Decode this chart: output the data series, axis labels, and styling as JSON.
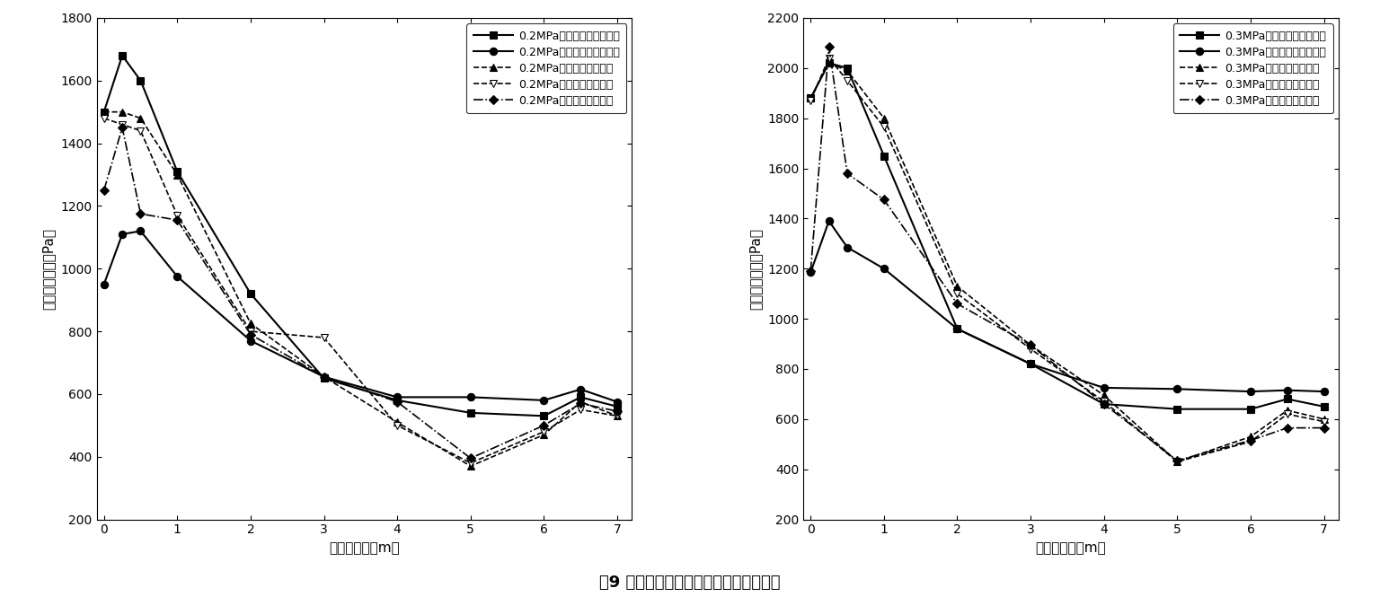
{
  "left": {
    "ylabel": "壁面峰值压力（Pa）",
    "xlabel": "距袋口距离（m）",
    "ylim": [
      200,
      1800
    ],
    "yticks": [
      200,
      400,
      600,
      800,
      1000,
      1200,
      1400,
      1600,
      1800
    ],
    "xlim": [
      -0.1,
      7.2
    ],
    "xticks": [
      0,
      1,
      2,
      3,
      4,
      5,
      6,
      7
    ],
    "series": [
      {
        "label": "0.2MPa数模（等流通面积）",
        "x": [
          0,
          0.25,
          0.5,
          1,
          2,
          3,
          4,
          5,
          6,
          6.5,
          7
        ],
        "y": [
          1500,
          1680,
          1600,
          1310,
          920,
          650,
          580,
          540,
          530,
          590,
          560
        ],
        "color": "black",
        "marker": "s",
        "linestyle": "-",
        "linewidth": 1.5,
        "markersize": 6,
        "markerfacecolor": "black"
      },
      {
        "label": "0.2MPa数模（等过滤面积）",
        "x": [
          0,
          0.25,
          0.5,
          1,
          2,
          3,
          4,
          5,
          6,
          6.5,
          7
        ],
        "y": [
          950,
          1110,
          1120,
          975,
          770,
          655,
          590,
          590,
          580,
          615,
          575
        ],
        "color": "black",
        "marker": "o",
        "linestyle": "-",
        "linewidth": 1.5,
        "markersize": 6,
        "markerfacecolor": "black"
      },
      {
        "label": "0.2MPa物理试验（波峰）",
        "x": [
          0,
          0.25,
          0.5,
          1,
          2,
          3,
          4,
          5,
          6,
          6.5,
          7
        ],
        "y": [
          1500,
          1500,
          1480,
          1300,
          825,
          655,
          510,
          370,
          470,
          575,
          530
        ],
        "color": "black",
        "marker": "^",
        "linestyle": "--",
        "linewidth": 1.2,
        "markersize": 6,
        "markerfacecolor": "black"
      },
      {
        "label": "0.2MPa物理试验（波中）",
        "x": [
          0,
          0.25,
          0.5,
          1,
          2,
          3,
          4,
          5,
          6,
          6.5,
          7
        ],
        "y": [
          1480,
          1460,
          1440,
          1170,
          800,
          780,
          500,
          380,
          480,
          550,
          530
        ],
        "color": "black",
        "marker": "v",
        "linestyle": "--",
        "linewidth": 1.2,
        "markersize": 6,
        "markerfacecolor": "white"
      },
      {
        "label": "0.2MPa物理试验（波谷）",
        "x": [
          0,
          0.25,
          0.5,
          1,
          2,
          3,
          4,
          5,
          6,
          6.5,
          7
        ],
        "y": [
          1250,
          1450,
          1175,
          1155,
          790,
          655,
          575,
          395,
          500,
          570,
          545
        ],
        "color": "black",
        "marker": "D",
        "linestyle": "-.",
        "linewidth": 1.2,
        "markersize": 5,
        "markerfacecolor": "black"
      }
    ]
  },
  "right": {
    "ylabel": "壁面峰值压力（Pa）",
    "xlabel": "距袋口距离（m）",
    "ylim": [
      200,
      2200
    ],
    "yticks": [
      200,
      400,
      600,
      800,
      1000,
      1200,
      1400,
      1600,
      1800,
      2000,
      2200
    ],
    "xlim": [
      -0.1,
      7.2
    ],
    "xticks": [
      0,
      1,
      2,
      3,
      4,
      5,
      6,
      7
    ],
    "series": [
      {
        "label": "0.3MPa数模（等流通面积）",
        "x": [
          0,
          0.25,
          0.5,
          1,
          2,
          3,
          4,
          5,
          6,
          6.5,
          7
        ],
        "y": [
          1880,
          2020,
          2000,
          1650,
          960,
          820,
          660,
          640,
          640,
          680,
          650
        ],
        "color": "black",
        "marker": "s",
        "linestyle": "-",
        "linewidth": 1.5,
        "markersize": 6,
        "markerfacecolor": "black"
      },
      {
        "label": "0.3MPa数模（等过滤面积）",
        "x": [
          0,
          0.25,
          0.5,
          1,
          2,
          3,
          4,
          5,
          6,
          6.5,
          7
        ],
        "y": [
          1185,
          1390,
          1285,
          1200,
          960,
          820,
          725,
          720,
          710,
          715,
          710
        ],
        "color": "black",
        "marker": "o",
        "linestyle": "-",
        "linewidth": 1.5,
        "markersize": 6,
        "markerfacecolor": "black"
      },
      {
        "label": "0.3MPa物理试验（波峰）",
        "x": [
          0,
          0.25,
          0.5,
          1,
          2,
          3,
          4,
          5,
          6,
          6.5,
          7
        ],
        "y": [
          1880,
          2020,
          1990,
          1800,
          1130,
          895,
          695,
          430,
          530,
          635,
          600
        ],
        "color": "black",
        "marker": "^",
        "linestyle": "--",
        "linewidth": 1.2,
        "markersize": 6,
        "markerfacecolor": "black"
      },
      {
        "label": "0.3MPa物理试验（波中）",
        "x": [
          0,
          0.25,
          0.5,
          1,
          2,
          3,
          4,
          5,
          6,
          6.5,
          7
        ],
        "y": [
          1870,
          2040,
          1950,
          1765,
          1100,
          880,
          670,
          430,
          510,
          620,
          590
        ],
        "color": "black",
        "marker": "v",
        "linestyle": "--",
        "linewidth": 1.2,
        "markersize": 6,
        "markerfacecolor": "white"
      },
      {
        "label": "0.3MPa物理试验（波谷）",
        "x": [
          0,
          0.25,
          0.5,
          1,
          2,
          3,
          4,
          5,
          6,
          6.5,
          7
        ],
        "y": [
          1190,
          2085,
          1580,
          1475,
          1060,
          895,
          660,
          435,
          515,
          565,
          565
        ],
        "color": "black",
        "marker": "D",
        "linestyle": "-.",
        "linewidth": 1.2,
        "markersize": 5,
        "markerfacecolor": "black"
      }
    ]
  },
  "figure_caption": "图9 物理试验、数值模拟条件下数据对比",
  "bg_color": "#ffffff"
}
